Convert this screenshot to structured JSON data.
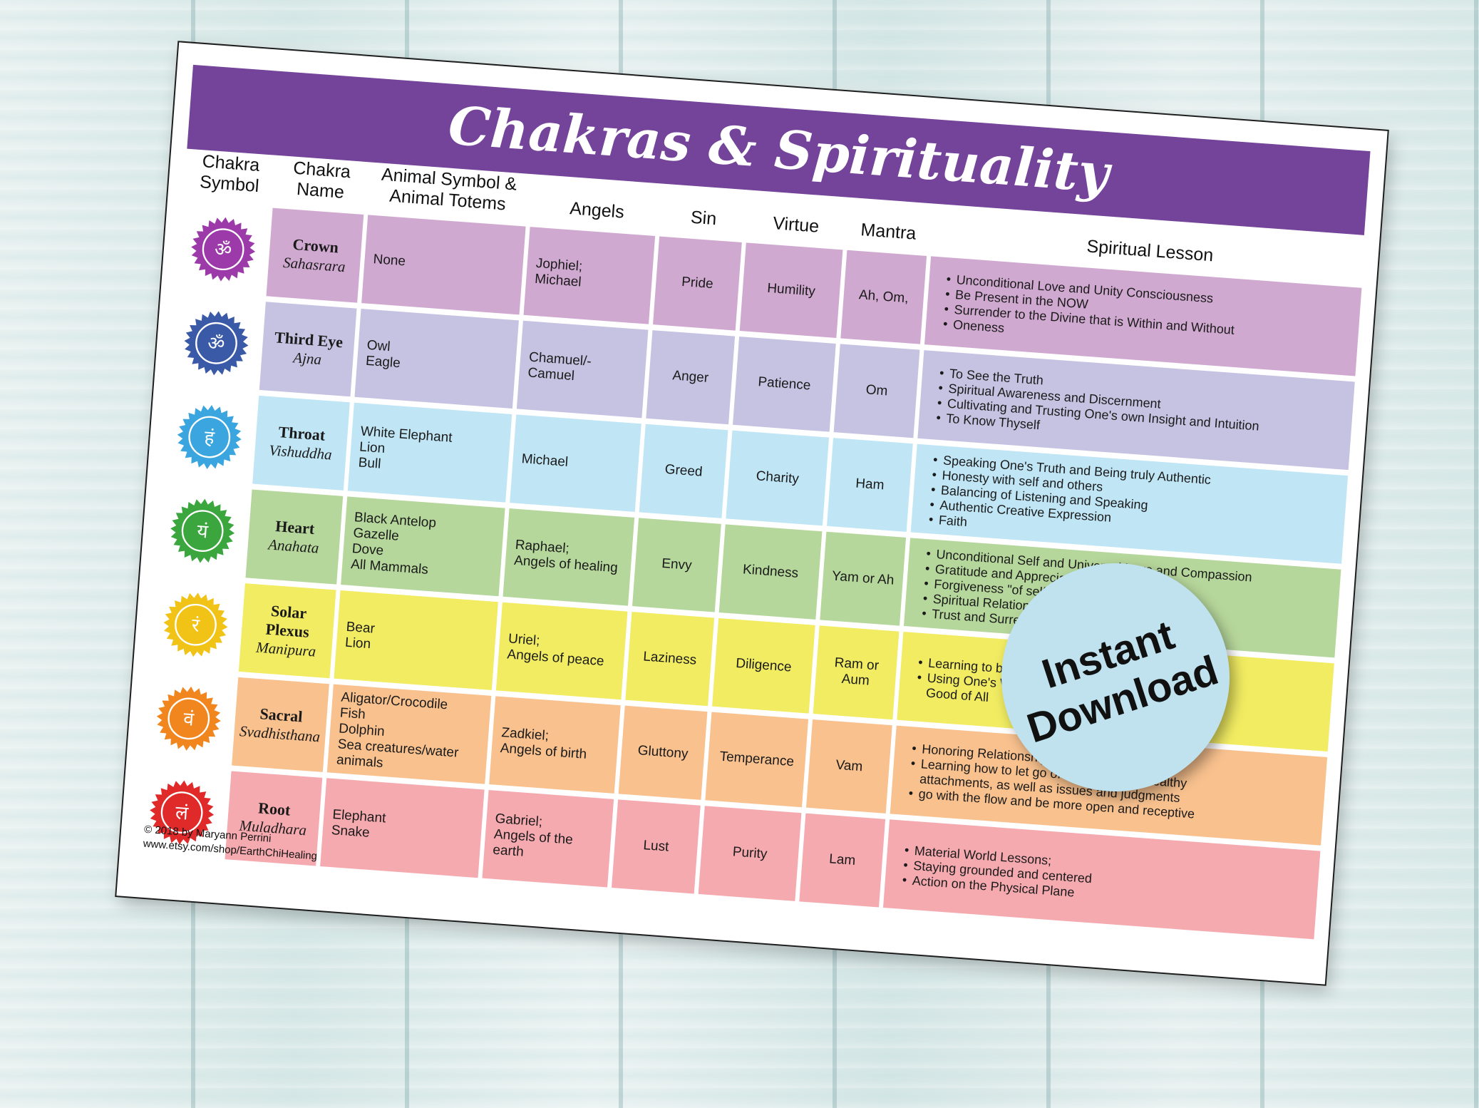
{
  "title": "Chakras & Spirituality",
  "headers": {
    "symbol": "Chakra\nSymbol",
    "name": "Chakra\nName",
    "animal": "Animal Symbol &\nAnimal Totems",
    "angels": "Angels",
    "sin": "Sin",
    "virtue": "Virtue",
    "mantra": "Mantra",
    "lesson": "Spiritual Lesson"
  },
  "rows": [
    {
      "name": "Crown",
      "sanskrit": "Sahasrara",
      "icon": "om-icon",
      "glyph": "ॐ",
      "color": "#d0a9d0",
      "symbol_color": "#9b3aa8",
      "animal": "None",
      "angels": "Jophiel;\nMichael",
      "sin": "Pride",
      "virtue": "Humility",
      "mantra": "Ah, Om,",
      "lesson": [
        "Unconditional Love and Unity Consciousness",
        "Be Present in the NOW",
        "Surrender to the Divine that is Within and Without",
        "Oneness"
      ]
    },
    {
      "name": "Third Eye",
      "sanskrit": "Ajna",
      "icon": "third-eye-icon",
      "glyph": "ॐ",
      "color": "#c6c2e1",
      "symbol_color": "#3a5aa8",
      "animal": "Owl\nEagle",
      "angels": "Chamuel/-\nCamuel",
      "sin": "Anger",
      "virtue": "Patience",
      "mantra": "Om",
      "lesson": [
        "To See the Truth",
        "Spiritual Awareness and Discernment",
        "Cultivating and Trusting One's own Insight and Intuition",
        "To Know Thyself"
      ]
    },
    {
      "name": "Throat",
      "sanskrit": "Vishuddha",
      "icon": "throat-icon",
      "glyph": "हं",
      "color": "#c0e6f6",
      "symbol_color": "#3aa5de",
      "animal": "White Elephant\nLion\nBull",
      "angels": "Michael",
      "sin": "Greed",
      "virtue": "Charity",
      "mantra": "Ham",
      "lesson": [
        "Speaking One's Truth and Being truly Authentic",
        "Honesty with self and others",
        "Balancing of Listening and Speaking",
        "Authentic Creative Expression",
        "Faith"
      ]
    },
    {
      "name": "Heart",
      "sanskrit": "Anahata",
      "icon": "heart-chakra-icon",
      "glyph": "यं",
      "color": "#b6d79b",
      "symbol_color": "#3aa63d",
      "animal": "Black Antelop\nGazelle\nDove\nAll Mammals",
      "angels": "Raphael;\nAngels of healing",
      "sin": "Envy",
      "virtue": "Kindness",
      "mantra": "Yam or Ah",
      "lesson": [
        "Unconditional Self and Universal Love and Compassion",
        "Gratitude and Appreciation",
        "Forgiveness \"of self and others\"",
        "Spiritual Relationship and Partnership, Healing",
        "Trust and Surrender"
      ]
    },
    {
      "name": "Solar Plexus",
      "sanskrit": "Manipura",
      "icon": "solar-plexus-icon",
      "glyph": "रं",
      "color": "#f1ec62",
      "symbol_color": "#f0c316",
      "animal": "Bear\nLion",
      "angels": "Uriel;\nAngels of peace",
      "sin": "Laziness",
      "virtue": "Diligence",
      "mantra": "Ram or\nAum",
      "lesson": [
        "Learning to be Empowered",
        "Using One's Will for the Highest\nGood of All"
      ]
    },
    {
      "name": "Sacral",
      "sanskrit": "Svadhisthana",
      "icon": "sacral-icon",
      "glyph": "वं",
      "color": "#f8c18e",
      "symbol_color": "#f2861e",
      "animal": "Aligator/Crocodile\nFish\nDolphin\nSea creatures/water\nanimals",
      "angels": "Zadkiel;\nAngels of birth",
      "sin": "Gluttony",
      "virtue": "Temperance",
      "mantra": "Vam",
      "lesson": [
        "Honoring Relationships;",
        "Learning how to let go of control and unhealthy\nattachments, as well as issues and judgments",
        "go with the flow and be more open and receptive"
      ]
    },
    {
      "name": "Root",
      "sanskrit": "Muladhara",
      "icon": "root-icon",
      "glyph": "लं",
      "color": "#f5aab0",
      "symbol_color": "#e02a2a",
      "animal": "Elephant\nSnake",
      "angels": "Gabriel;\nAngels of the earth",
      "sin": "Lust",
      "virtue": "Purity",
      "mantra": "Lam",
      "lesson": [
        "Material World Lessons;",
        "Staying grounded and centered",
        "Action on the Physical Plane"
      ]
    }
  ],
  "footer": {
    "copyright": "© 2018 by Maryann Perrini",
    "url": "www.etsy.com/shop/EarthChiHealing"
  },
  "badge": {
    "line1": "Instant",
    "line2": "Download"
  }
}
